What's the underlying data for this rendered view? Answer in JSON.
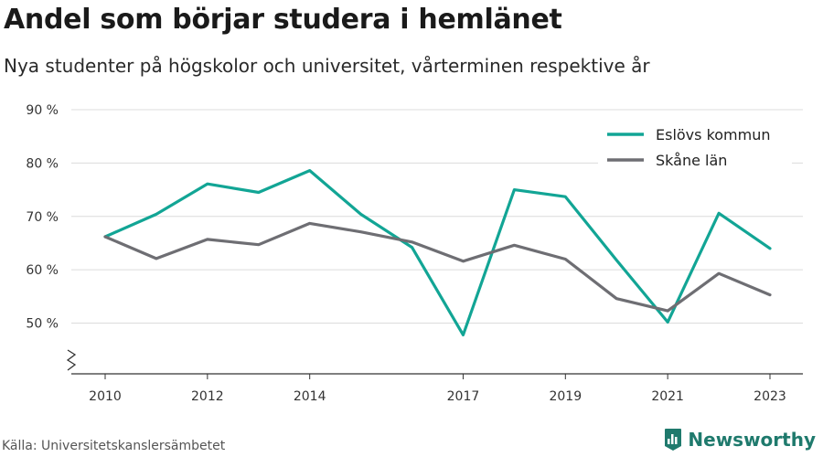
{
  "chart_data": {
    "type": "line",
    "title": "Andel som börjar studera i hemlänet",
    "subtitle": "Nya studenter på högskolor och universitet, vårterminen respektive år",
    "x": [
      2010,
      2011,
      2012,
      2013,
      2014,
      2015,
      2016,
      2017,
      2018,
      2019,
      2020,
      2021,
      2022,
      2023
    ],
    "x_tick_labels": [
      "2010",
      "2012",
      "2014",
      "2017",
      "2019",
      "2021",
      "2023"
    ],
    "x_tick_values": [
      2010,
      2012,
      2014,
      2017,
      2019,
      2021,
      2023
    ],
    "y_tick_labels": [
      "50 %",
      "60 %",
      "70 %",
      "80 %",
      "90 %"
    ],
    "y_tick_values": [
      50,
      60,
      70,
      80,
      90
    ],
    "ylim": [
      40.5,
      90
    ],
    "grid": true,
    "legend_position": "top-right",
    "series": [
      {
        "name": "Eslövs kommun",
        "color": "#12a595",
        "values": [
          66.2,
          70.4,
          76.1,
          74.5,
          78.6,
          70.4,
          64.2,
          47.8,
          75.0,
          73.7,
          61.8,
          50.2,
          70.6,
          64.0
        ]
      },
      {
        "name": "Skåne län",
        "color": "#6e6e73",
        "values": [
          66.2,
          62.1,
          65.7,
          64.7,
          68.7,
          67.1,
          65.2,
          61.6,
          64.6,
          62.0,
          54.6,
          52.3,
          59.3,
          55.3
        ]
      }
    ]
  },
  "footer": {
    "source": "Källa: Universitetskanslersämbetet",
    "brand": "Newsworthy",
    "brand_color": "#1f7a6d",
    "brand_icon": "bar-chart-logo-icon"
  }
}
